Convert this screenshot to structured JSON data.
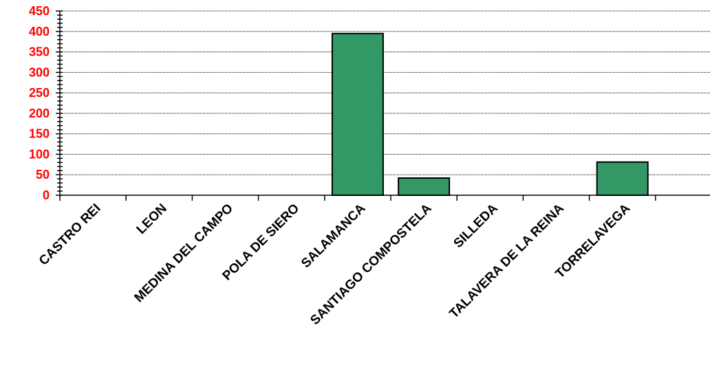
{
  "chart_data": {
    "type": "bar",
    "categories": [
      "CASTRO REI",
      "LEON",
      "MEDINA DEL CAMPO",
      "POLA DE SIERO",
      "SALAMANCA",
      "SANTIAGO COMPOSTELA",
      "SILLEDA",
      "TALAVERA DE LA REINA",
      "TORRELAVEGA"
    ],
    "values": [
      0,
      0,
      0,
      0,
      395,
      42,
      0,
      0,
      81
    ],
    "title": "",
    "xlabel": "",
    "ylabel": "",
    "ylim": [
      0,
      450
    ],
    "yticks": [
      0,
      50,
      100,
      150,
      200,
      250,
      300,
      350,
      400,
      450
    ],
    "grid": true,
    "legend": "none",
    "colors": {
      "bar": "#339966",
      "ytick_labels": "#ff0000",
      "xtick_labels": "#000000"
    }
  }
}
